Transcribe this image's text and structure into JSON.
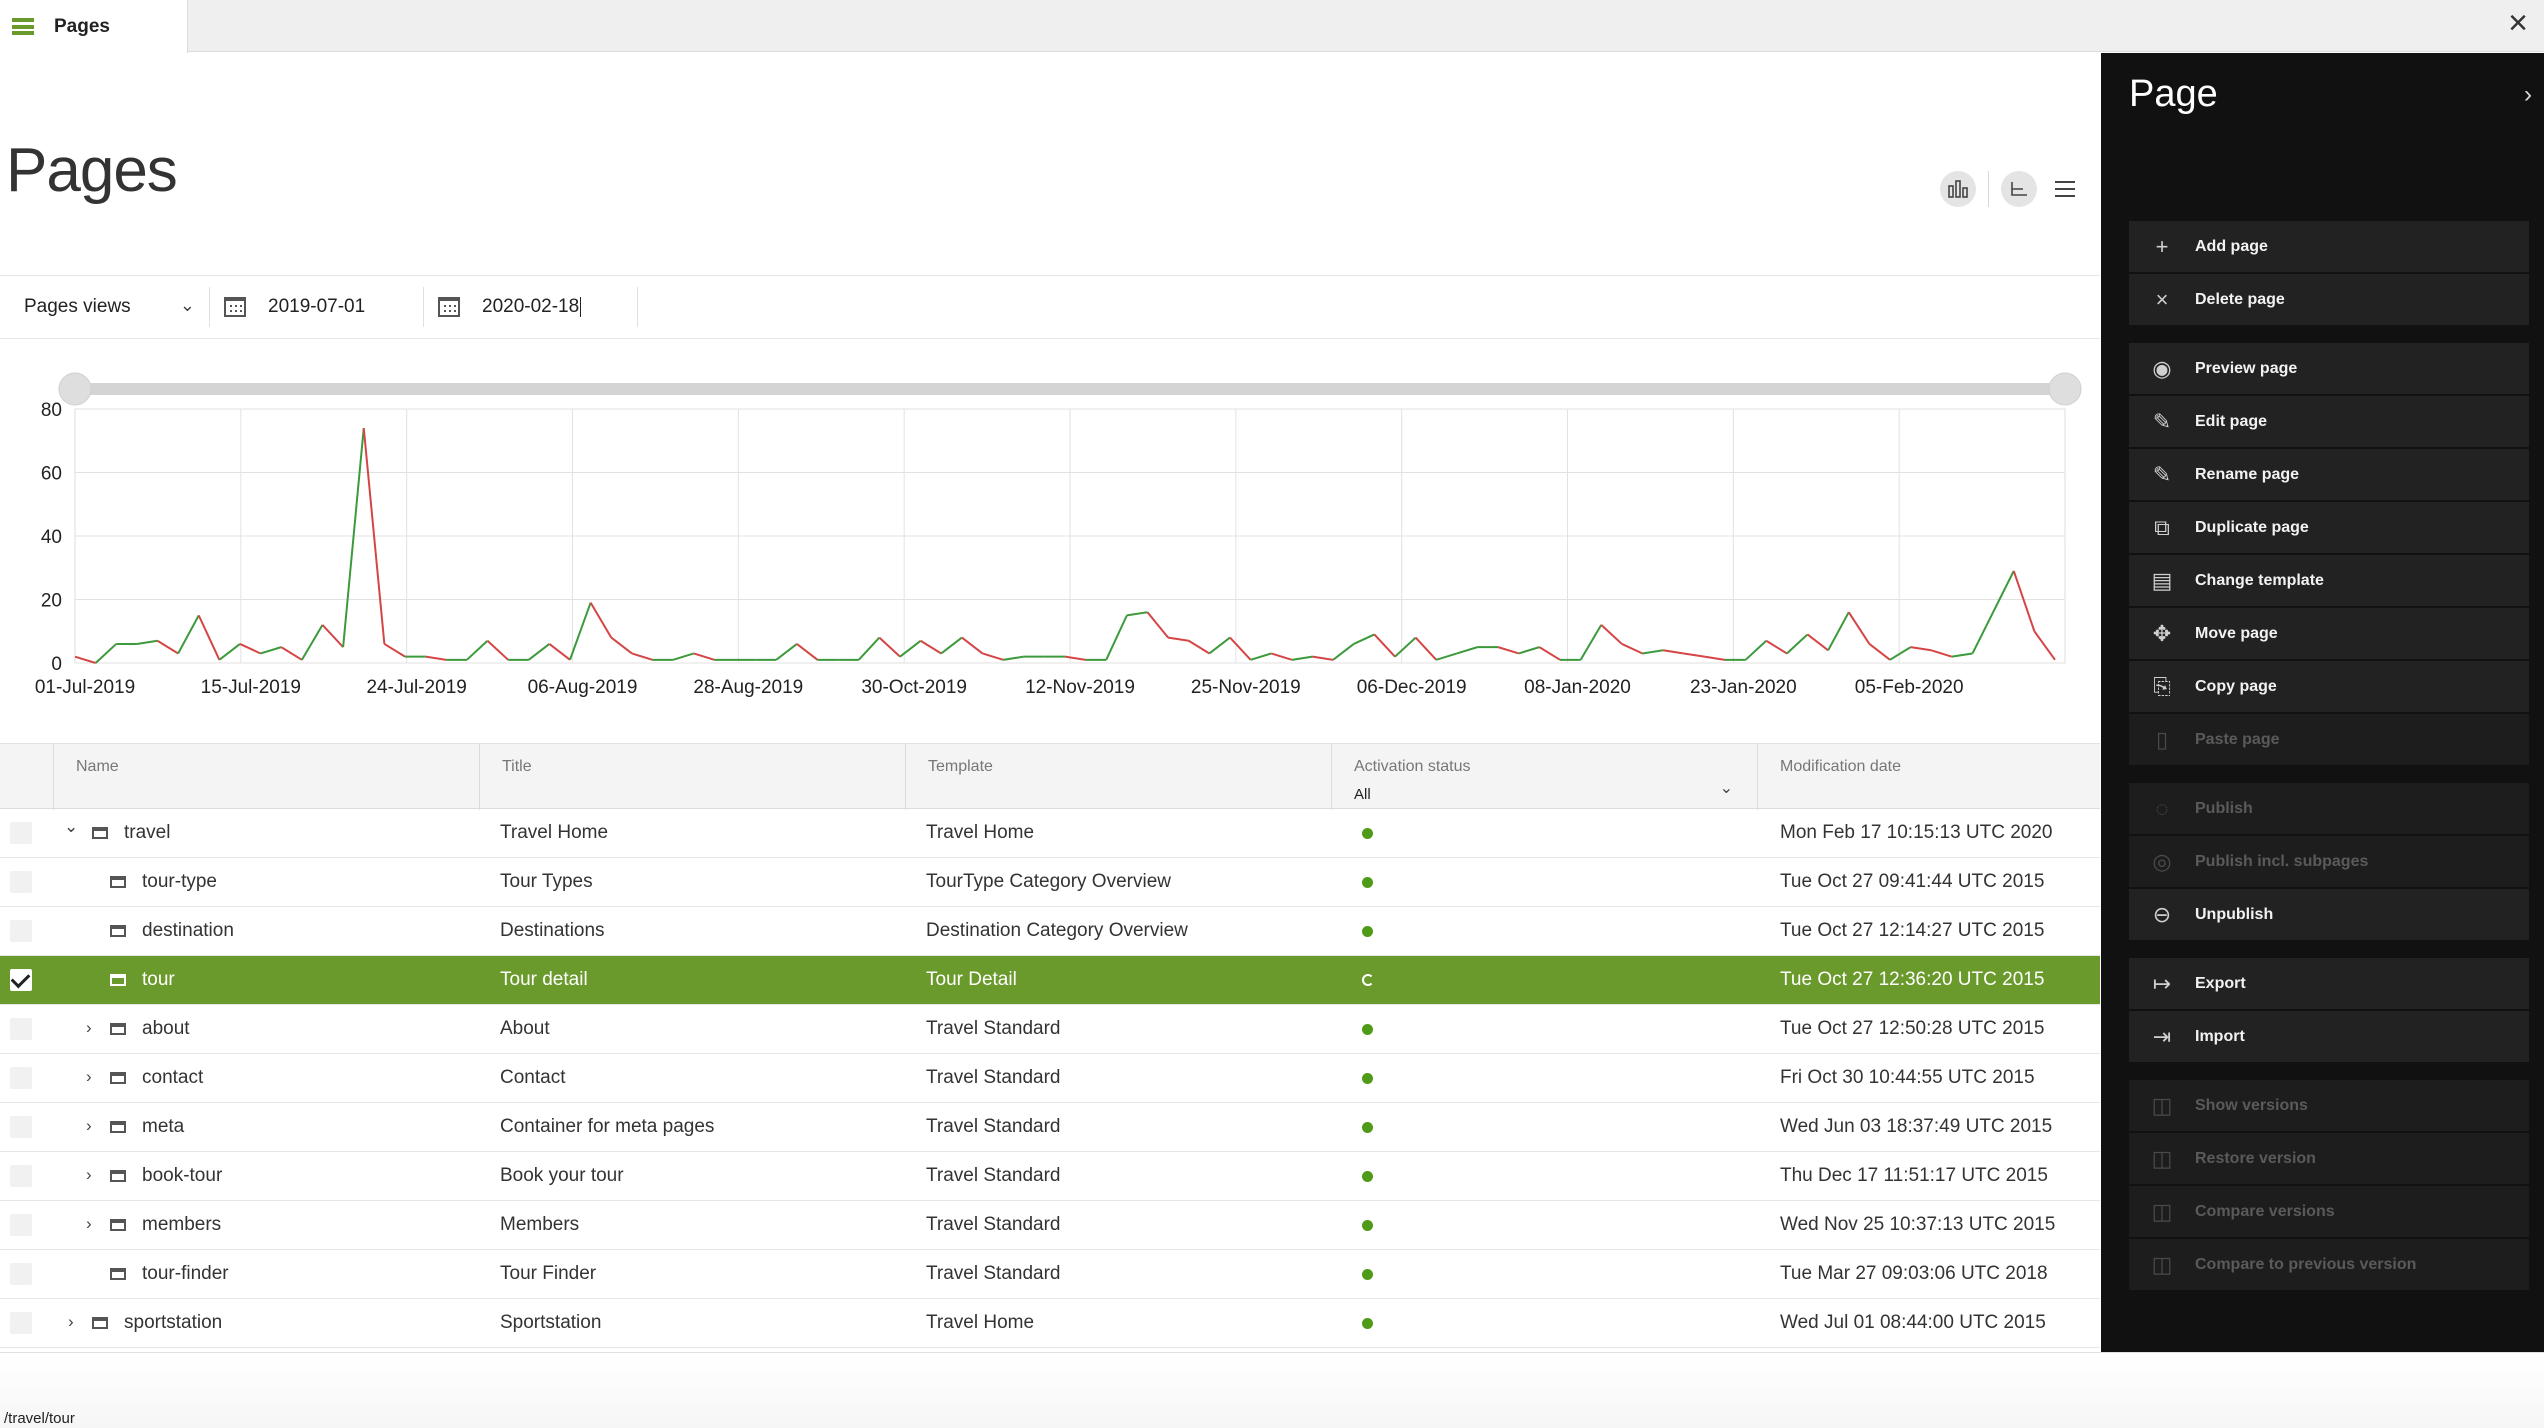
{
  "tab": {
    "label": "Pages"
  },
  "page": {
    "title": "Pages"
  },
  "filters": {
    "metric": "Pages views",
    "date_from": "2019-07-01",
    "date_to": "2020-02-18"
  },
  "colors": {
    "accent": "#6a9a2b",
    "chart_up": "#3c9a3c",
    "chart_down": "#d64545",
    "panel_bg": "#111111"
  },
  "chart_data": {
    "type": "line",
    "title": "",
    "xlabel": "",
    "ylabel": "",
    "ylim": [
      0,
      80
    ],
    "yticks": [
      0,
      20,
      40,
      60,
      80
    ],
    "xtick_labels": [
      "01-Jul-2019",
      "15-Jul-2019",
      "24-Jul-2019",
      "06-Aug-2019",
      "28-Aug-2019",
      "30-Oct-2019",
      "12-Nov-2019",
      "25-Nov-2019",
      "06-Dec-2019",
      "08-Jan-2020",
      "23-Jan-2020",
      "05-Feb-2020"
    ],
    "grid": true,
    "coloring": "segments rising are green, segments falling are red",
    "values": [
      2,
      0,
      6,
      6,
      7,
      3,
      15,
      1,
      6,
      3,
      5,
      1,
      12,
      5,
      74,
      6,
      2,
      2,
      1,
      1,
      7,
      1,
      1,
      6,
      1,
      19,
      8,
      3,
      1,
      1,
      3,
      1,
      1,
      1,
      1,
      6,
      1,
      1,
      1,
      8,
      2,
      7,
      3,
      8,
      3,
      1,
      2,
      2,
      2,
      1,
      1,
      15,
      16,
      8,
      7,
      3,
      8,
      1,
      3,
      1,
      2,
      1,
      6,
      9,
      2,
      8,
      1,
      3,
      5,
      5,
      3,
      5,
      1,
      1,
      12,
      6,
      3,
      4,
      3,
      2,
      1,
      1,
      7,
      3,
      9,
      4,
      16,
      6,
      1,
      5,
      4,
      2,
      3,
      16,
      29,
      10,
      1
    ]
  },
  "table": {
    "columns": [
      "Name",
      "Title",
      "Template",
      "Activation status",
      "Modification date"
    ],
    "status_filter": "All",
    "rows": [
      {
        "name": "travel",
        "title": "Travel Home",
        "template": "Travel Home",
        "status": "active",
        "modified": "Mon Feb 17 10:15:13 UTC 2020",
        "level": 0,
        "expander": "open",
        "selected": false
      },
      {
        "name": "tour-type",
        "title": "Tour Types",
        "template": "TourType Category Overview",
        "status": "active",
        "modified": "Tue Oct 27 09:41:44 UTC 2015",
        "level": 1,
        "expander": "none",
        "selected": false
      },
      {
        "name": "destination",
        "title": "Destinations",
        "template": "Destination Category Overview",
        "status": "active",
        "modified": "Tue Oct 27 12:14:27 UTC 2015",
        "level": 1,
        "expander": "none",
        "selected": false
      },
      {
        "name": "tour",
        "title": "Tour detail",
        "template": "Tour Detail",
        "status": "pending",
        "modified": "Tue Oct 27 12:36:20 UTC 2015",
        "level": 1,
        "expander": "none",
        "selected": true
      },
      {
        "name": "about",
        "title": "About",
        "template": "Travel Standard",
        "status": "active",
        "modified": "Tue Oct 27 12:50:28 UTC 2015",
        "level": 1,
        "expander": "closed",
        "selected": false
      },
      {
        "name": "contact",
        "title": "Contact",
        "template": "Travel Standard",
        "status": "active",
        "modified": "Fri Oct 30 10:44:55 UTC 2015",
        "level": 1,
        "expander": "closed",
        "selected": false
      },
      {
        "name": "meta",
        "title": "Container for meta pages",
        "template": "Travel Standard",
        "status": "active",
        "modified": "Wed Jun 03 18:37:49 UTC 2015",
        "level": 1,
        "expander": "closed",
        "selected": false
      },
      {
        "name": "book-tour",
        "title": "Book your tour",
        "template": "Travel Standard",
        "status": "active",
        "modified": "Thu Dec 17 11:51:17 UTC 2015",
        "level": 1,
        "expander": "closed",
        "selected": false
      },
      {
        "name": "members",
        "title": "Members",
        "template": "Travel Standard",
        "status": "active",
        "modified": "Wed Nov 25 10:37:13 UTC 2015",
        "level": 1,
        "expander": "closed",
        "selected": false
      },
      {
        "name": "tour-finder",
        "title": "Tour Finder",
        "template": "Travel Standard",
        "status": "active",
        "modified": "Tue Mar 27 09:03:06 UTC 2018",
        "level": 1,
        "expander": "none",
        "selected": false
      },
      {
        "name": "sportstation",
        "title": "Sportstation",
        "template": "Travel Home",
        "status": "active",
        "modified": "Wed Jul 01 08:44:00 UTC 2015",
        "level": 0,
        "expander": "closed",
        "selected": false
      }
    ]
  },
  "status_bar": {
    "path": "/travel/tour"
  },
  "side_panel": {
    "title": "Page",
    "actions": [
      {
        "label": "Add page",
        "icon": "plus-icon",
        "enabled": true,
        "gap": false
      },
      {
        "label": "Delete page",
        "icon": "x-icon",
        "enabled": true,
        "gap": false
      },
      {
        "label": "Preview page",
        "icon": "eye-icon",
        "enabled": true,
        "gap": true
      },
      {
        "label": "Edit page",
        "icon": "pencil-icon",
        "enabled": true,
        "gap": false
      },
      {
        "label": "Rename page",
        "icon": "pencil-icon",
        "enabled": true,
        "gap": false
      },
      {
        "label": "Duplicate page",
        "icon": "duplicate-icon",
        "enabled": true,
        "gap": false
      },
      {
        "label": "Change template",
        "icon": "template-icon",
        "enabled": true,
        "gap": false
      },
      {
        "label": "Move page",
        "icon": "move-icon",
        "enabled": true,
        "gap": false
      },
      {
        "label": "Copy page",
        "icon": "copy-icon",
        "enabled": true,
        "gap": false
      },
      {
        "label": "Paste page",
        "icon": "paste-icon",
        "enabled": false,
        "gap": false
      },
      {
        "label": "Publish",
        "icon": "publish-icon",
        "enabled": false,
        "gap": true
      },
      {
        "label": "Publish incl. subpages",
        "icon": "publish-subpages-icon",
        "enabled": false,
        "gap": false
      },
      {
        "label": "Unpublish",
        "icon": "unpublish-icon",
        "enabled": true,
        "gap": false
      },
      {
        "label": "Export",
        "icon": "export-icon",
        "enabled": true,
        "gap": true
      },
      {
        "label": "Import",
        "icon": "import-icon",
        "enabled": true,
        "gap": false
      },
      {
        "label": "Show versions",
        "icon": "versions-icon",
        "enabled": false,
        "gap": true
      },
      {
        "label": "Restore version",
        "icon": "versions-icon",
        "enabled": false,
        "gap": false
      },
      {
        "label": "Compare versions",
        "icon": "versions-icon",
        "enabled": false,
        "gap": false
      },
      {
        "label": "Compare to previous version",
        "icon": "versions-icon",
        "enabled": false,
        "gap": false
      }
    ]
  }
}
